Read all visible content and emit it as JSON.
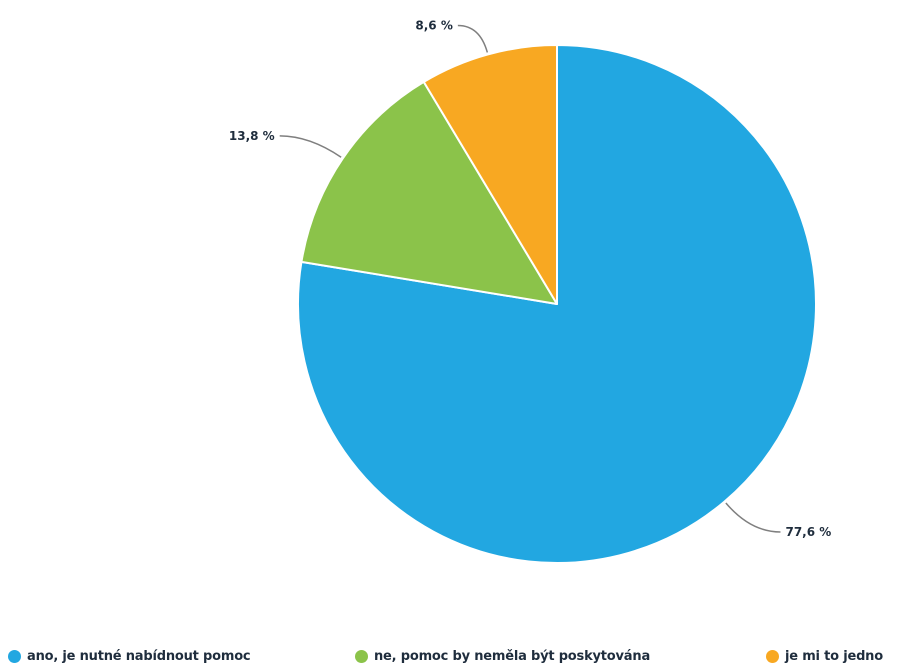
{
  "chart_data": {
    "type": "pie",
    "title": "",
    "slices": [
      {
        "label": "ano, je nutné nabídnout pomoc",
        "value": 77.6,
        "display": "77,6 %",
        "color": "#22a7e1"
      },
      {
        "label": "ne, pomoc by neměla být poskytována",
        "value": 13.8,
        "display": "13,8 %",
        "color": "#8bc34a"
      },
      {
        "label": "je mi to jedno",
        "value": 8.6,
        "display": "8,6 %",
        "color": "#f8a822"
      }
    ],
    "start": "12 o'clock",
    "direction": "clockwise",
    "legend": "bottom"
  }
}
